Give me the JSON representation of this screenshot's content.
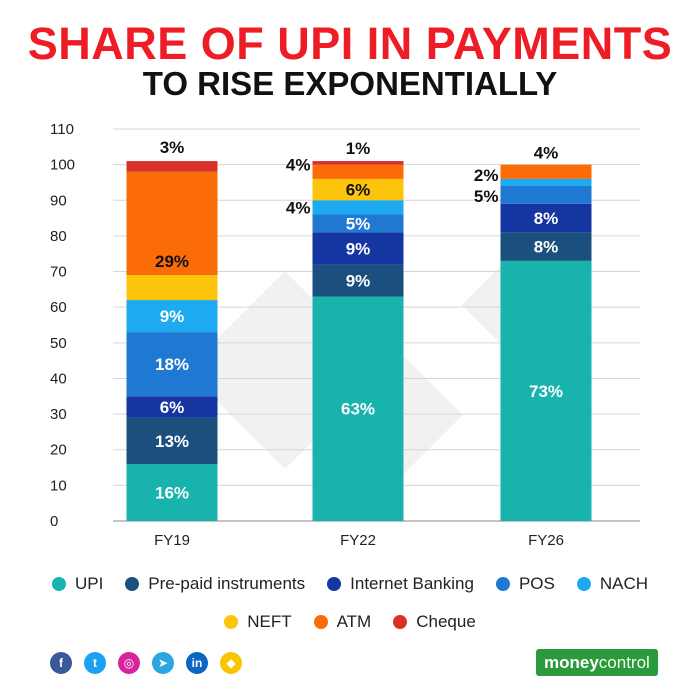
{
  "header": {
    "title": "SHARE OF UPI IN PAYMENTS",
    "subtitle": "TO RISE EXPONENTIALLY"
  },
  "chart_data": {
    "type": "bar",
    "stacked": true,
    "title": "SHARE OF UPI IN PAYMENTS TO RISE EXPONENTIALLY",
    "xlabel": "",
    "ylabel": "",
    "categories": [
      "FY19",
      "FY22",
      "FY26"
    ],
    "ylim": [
      0,
      110
    ],
    "yticks": [
      0,
      10,
      20,
      30,
      40,
      50,
      60,
      70,
      80,
      90,
      100,
      110
    ],
    "grid": true,
    "legend_position": "bottom",
    "series": [
      {
        "name": "UPI",
        "color": "#19b3ae",
        "values": [
          16,
          63,
          73
        ],
        "labels": [
          "16%",
          "63%",
          "73%"
        ]
      },
      {
        "name": "Pre-paid instruments",
        "color": "#1b4f7d",
        "values": [
          13,
          9,
          8
        ],
        "labels": [
          "13%",
          "9%",
          "8%"
        ]
      },
      {
        "name": "Internet Banking",
        "color": "#1535a0",
        "values": [
          6,
          9,
          8
        ],
        "labels": [
          "6%",
          "9%",
          "8%"
        ]
      },
      {
        "name": "POS",
        "color": "#1f78d1",
        "values": [
          18,
          5,
          5
        ],
        "labels": [
          "18%",
          "5%",
          "5%"
        ]
      },
      {
        "name": "NACH",
        "color": "#1eaaf0",
        "values": [
          9,
          4,
          2
        ],
        "labels": [
          "9%",
          "4%",
          "2%"
        ]
      },
      {
        "name": "NEFT",
        "color": "#fcc40a",
        "values": [
          7,
          6,
          0
        ],
        "labels": [
          "",
          "6%",
          ""
        ]
      },
      {
        "name": "ATM",
        "color": "#fb6b08",
        "values": [
          29,
          4,
          4
        ],
        "labels": [
          "29%",
          "4%",
          "4%"
        ]
      },
      {
        "name": "Cheque",
        "color": "#d93128",
        "values": [
          3,
          1,
          0
        ],
        "labels": [
          "3%",
          "1%",
          ""
        ]
      }
    ]
  },
  "footer": {
    "social": [
      {
        "name": "facebook",
        "glyph": "f",
        "color": "#3b5998"
      },
      {
        "name": "twitter",
        "glyph": "t",
        "color": "#1da1f2"
      },
      {
        "name": "instagram",
        "glyph": "◎",
        "color": "#d6249f"
      },
      {
        "name": "telegram",
        "glyph": "➤",
        "color": "#2ca5e0"
      },
      {
        "name": "linkedin",
        "glyph": "in",
        "color": "#0a66c2"
      },
      {
        "name": "snapchat",
        "glyph": "◆",
        "color": "#f7c600"
      }
    ],
    "brand_part1": "money",
    "brand_part2": "control"
  }
}
